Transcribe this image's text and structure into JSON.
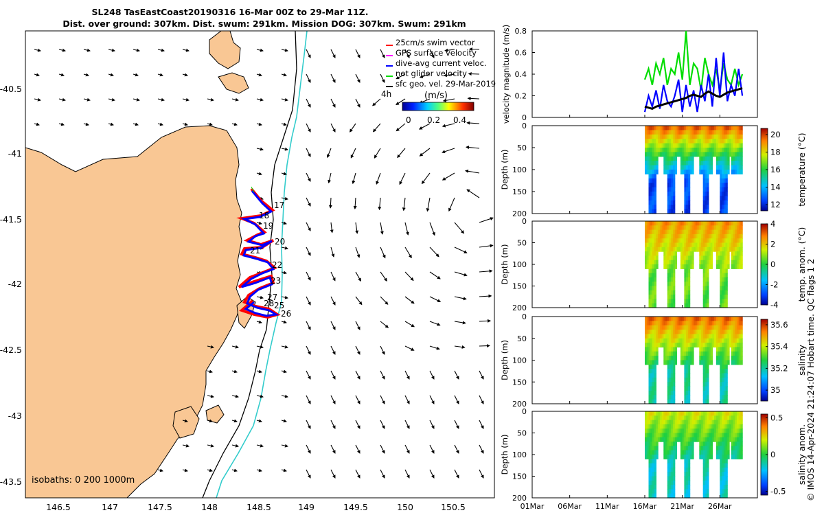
{
  "figure": {
    "title_line1": "SL248 TasEastCoast20190316 16-Mar 00Z to 29-Mar 11Z.",
    "title_line2": "Dist. over ground: 307km. Dist. swum: 291km. Mission DOG: 307km. Swum: 291km",
    "credit": "© IMOS 14-Apr-2024 21:24:07 Hobart time. QC flags 1  2"
  },
  "map": {
    "lon_ticks": [
      "146.5",
      "147",
      "147.5",
      "148",
      "148.5",
      "149",
      "149.5",
      "150",
      "150.5"
    ],
    "lat_ticks": [
      "-40.5",
      "-41",
      "-41.5",
      "-42",
      "-42.5",
      "-43",
      "-43.5"
    ],
    "legend": {
      "items": [
        {
          "label": "25cm/s swim vector",
          "color": "#ff0000"
        },
        {
          "label": "GPS surface velocity",
          "color": "#ff00ff"
        },
        {
          "label": "dive-avg current veloc.",
          "color": "#0000ff"
        },
        {
          "label": "net glider velocity",
          "color": "#00dd00"
        },
        {
          "label": "sfc geo. vel. 29-Mar-2019",
          "color": "#000000"
        }
      ],
      "time_label": "4h",
      "colorbar_label": "(m/s)",
      "colorbar_ticks": [
        "0",
        "0.2",
        "0.4"
      ]
    },
    "day_labels": [
      "17",
      "18",
      "19",
      "20",
      "21",
      "22",
      "23",
      "27",
      "28",
      "25",
      "26"
    ],
    "isobaths_label": "isobaths: 0   200 1000m",
    "land_color": "#f9c794",
    "isobath_1000_color": "#33cccc"
  },
  "chart_data": [
    {
      "type": "line",
      "title": "velocity magnitude",
      "ylabel": "velocity magnitude (m/s)",
      "ylim": [
        0,
        0.8
      ],
      "yticks": [
        "0",
        "0.2",
        "0.4",
        "0.6",
        "0.8"
      ],
      "x": [
        16.0,
        16.5,
        17.0,
        17.5,
        18.0,
        18.5,
        19.0,
        19.5,
        20.0,
        20.5,
        21.0,
        21.5,
        22.0,
        22.5,
        23.0,
        23.5,
        24.0,
        24.5,
        25.0,
        25.5,
        26.0,
        26.5,
        27.0,
        27.5,
        28.0,
        28.5,
        29.0
      ],
      "series": [
        {
          "name": "net glider velocity",
          "color": "#00dd00",
          "values": [
            0.35,
            0.45,
            0.3,
            0.5,
            0.4,
            0.55,
            0.3,
            0.45,
            0.4,
            0.6,
            0.35,
            0.8,
            0.3,
            0.5,
            0.45,
            0.25,
            0.55,
            0.4,
            0.3,
            0.45,
            0.25,
            0.5,
            0.35,
            0.3,
            0.45,
            0.3,
            0.4
          ]
        },
        {
          "name": "dive-avg current veloc.",
          "color": "#0000ff",
          "values": [
            0.05,
            0.2,
            0.1,
            0.25,
            0.08,
            0.3,
            0.15,
            0.1,
            0.2,
            0.35,
            0.05,
            0.3,
            0.1,
            0.25,
            0.05,
            0.3,
            0.15,
            0.4,
            0.1,
            0.55,
            0.2,
            0.6,
            0.15,
            0.3,
            0.2,
            0.45,
            0.2
          ]
        },
        {
          "name": "sfc geo. vel.",
          "color": "#000000",
          "values": [
            0.1,
            0.09,
            0.08,
            0.1,
            0.11,
            0.12,
            0.13,
            0.14,
            0.15,
            0.16,
            0.17,
            0.18,
            0.2,
            0.21,
            0.2,
            0.19,
            0.22,
            0.24,
            0.22,
            0.2,
            0.19,
            0.21,
            0.23,
            0.24,
            0.25,
            0.26,
            0.27
          ]
        }
      ]
    },
    {
      "type": "heatmap",
      "title": "temperature",
      "ylabel": "Depth (m)",
      "colorbar_label": "temperature (°C)",
      "colorbar_ticks": [
        "12",
        "14",
        "16",
        "18",
        "20"
      ],
      "clim": [
        11.3,
        20.7
      ],
      "ylim": [
        200,
        0
      ],
      "yticks": [
        "0",
        "50",
        "100",
        "150",
        "200"
      ],
      "profile_days": [
        16.8,
        19.3,
        21.5,
        24.0,
        26.3,
        28.2
      ],
      "max_depth_m": [
        195,
        195,
        195,
        195,
        195,
        110
      ],
      "surface_value": 19.5,
      "bottom_value": 12.5
    },
    {
      "type": "heatmap",
      "title": "temp. anom.",
      "ylabel": "Depth (m)",
      "colorbar_label": "temp. anom. (°C)",
      "colorbar_ticks": [
        "-4",
        "-2",
        "0",
        "2",
        "4"
      ],
      "clim": [
        -4,
        4
      ],
      "ylim": [
        200,
        0
      ],
      "yticks": [
        "0",
        "50",
        "100",
        "150",
        "200"
      ],
      "profile_days": [
        16.8,
        19.3,
        21.5,
        24.0,
        26.3,
        28.2
      ],
      "max_depth_m": [
        195,
        195,
        195,
        195,
        195,
        110
      ],
      "surface_value": 2.5,
      "bottom_value": 0.5
    },
    {
      "type": "heatmap",
      "title": "salinity",
      "ylabel": "Depth (m)",
      "colorbar_label": "salinity",
      "colorbar_ticks": [
        "35",
        "35.2",
        "35.4",
        "35.6"
      ],
      "clim": [
        34.9,
        35.65
      ],
      "ylim": [
        200,
        0
      ],
      "yticks": [
        "0",
        "50",
        "100",
        "150",
        "200"
      ],
      "profile_days": [
        16.8,
        19.3,
        21.5,
        24.0,
        26.3,
        28.2
      ],
      "max_depth_m": [
        195,
        195,
        195,
        195,
        195,
        110
      ],
      "surface_value": 35.55,
      "bottom_value": 35.2
    },
    {
      "type": "heatmap",
      "title": "salinity anom.",
      "ylabel": "Depth (m)",
      "colorbar_label": "salinity anom.",
      "colorbar_ticks": [
        "-0.5",
        "0",
        "0.5"
      ],
      "clim": [
        -0.55,
        0.55
      ],
      "ylim": [
        200,
        0
      ],
      "yticks": [
        "0",
        "50",
        "100",
        "150",
        "200"
      ],
      "profile_days": [
        16.8,
        19.3,
        21.5,
        24.0,
        26.3,
        28.2
      ],
      "max_depth_m": [
        195,
        195,
        195,
        195,
        195,
        110
      ],
      "surface_value": 0.2,
      "bottom_value": -0.15,
      "xlabel_ticks": [
        "01Mar",
        "06Mar",
        "11Mar",
        "16Mar",
        "21Mar",
        "26Mar"
      ],
      "xlim_day": [
        1,
        31
      ]
    }
  ]
}
